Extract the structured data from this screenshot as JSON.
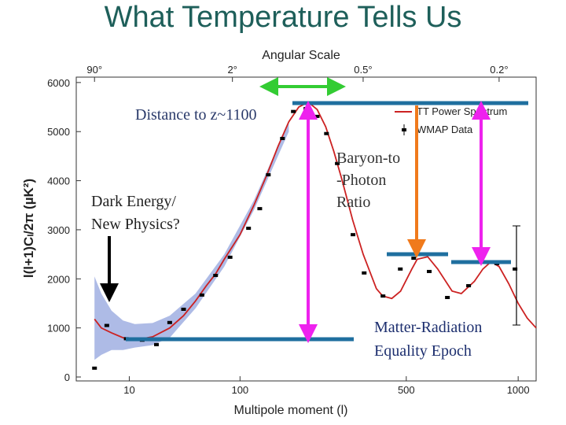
{
  "chart_data": {
    "type": "scatter",
    "title": "What Temperature Tells Us",
    "top_xlabel": "Angular Scale",
    "xlabel": "Multipole moment (l)",
    "ylabel": "l(l+1)Cₗ/2π (µK²)",
    "xscale_power": 0.4,
    "xlim": [
      0.4,
      1100
    ],
    "ylim": [
      -80,
      6110
    ],
    "xticks": [
      10,
      100,
      500,
      1000
    ],
    "yticks": [
      0,
      1000,
      2000,
      3000,
      4000,
      5000,
      6000
    ],
    "top_xticks": [
      {
        "value": 2,
        "label": "90°"
      },
      {
        "value": 90,
        "label": "2°"
      },
      {
        "value": 360,
        "label": "0.5°"
      },
      {
        "value": 900,
        "label": "0.2°"
      }
    ],
    "band": {
      "color": "#9aaae0",
      "x": [
        2,
        3,
        5,
        8,
        12,
        20,
        30,
        50,
        80,
        120,
        180
      ],
      "upper": [
        2050,
        1700,
        1350,
        1150,
        1080,
        1100,
        1250,
        1700,
        2500,
        3600,
        5200
      ],
      "lower": [
        350,
        450,
        550,
        550,
        600,
        650,
        800,
        1400,
        2250,
        3400,
        5000
      ]
    },
    "series": [
      {
        "name": "TT Power Spectrum",
        "type": "line",
        "color": "#cc2222",
        "x": [
          2,
          3,
          5,
          8,
          10,
          15,
          20,
          30,
          40,
          50,
          60,
          70,
          80,
          100,
          120,
          140,
          160,
          180,
          200,
          220,
          240,
          260,
          280,
          300,
          330,
          360,
          400,
          420,
          450,
          480,
          520,
          540,
          580,
          620,
          680,
          720,
          780,
          820,
          860,
          900,
          950,
          1000,
          1050,
          1100
        ],
        "values": [
          1180,
          1000,
          900,
          800,
          780,
          780,
          820,
          1000,
          1250,
          1550,
          1850,
          2100,
          2400,
          2900,
          3500,
          4100,
          4700,
          5200,
          5500,
          5600,
          5450,
          5100,
          4600,
          4050,
          3200,
          2500,
          1800,
          1650,
          1600,
          1750,
          2200,
          2400,
          2450,
          2200,
          1750,
          1700,
          1950,
          2200,
          2350,
          2250,
          1900,
          1500,
          1200,
          1000
        ]
      },
      {
        "name": "WMAP Data",
        "type": "scatter",
        "color": "#000000",
        "x": [
          2,
          4,
          9,
          15,
          22,
          30,
          40,
          56,
          70,
          87,
          112,
          129,
          143,
          168,
          189,
          215,
          240,
          262,
          289,
          331,
          363,
          421,
          479,
          527,
          586,
          660,
          753,
          889,
          983
        ],
        "values": [
          180,
          1050,
          780,
          750,
          660,
          1110,
          1380,
          1670,
          2070,
          2440,
          3030,
          3430,
          4120,
          4860,
          5410,
          5470,
          5310,
          4960,
          4350,
          2900,
          2120,
          1650,
          2200,
          2420,
          2150,
          1620,
          1860,
          2310,
          2200
        ]
      }
    ],
    "annotations": [
      [
        "Distance to z~1100"
      ],
      [
        "Dark Energy/",
        "New Physics?"
      ],
      [
        "Baryon-to",
        "-Photon",
        "Ratio"
      ],
      [
        "Matter-Radiation",
        "Equality Epoch"
      ]
    ]
  }
}
